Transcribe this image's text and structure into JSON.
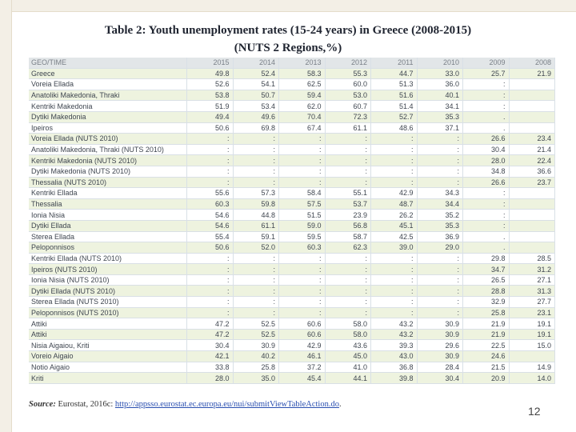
{
  "title_line1": "Table 2: Youth unemployment rates (15-24 years) in Greece (2008-2015)",
  "title_line2": "(NUTS 2 Regions,%)",
  "header": [
    "GEO/TIME",
    "2015",
    "2014",
    "2013",
    "2012",
    "2011",
    "2010",
    "2009",
    "2008"
  ],
  "rows": [
    [
      "Greece",
      "49.8",
      "52.4",
      "58.3",
      "55.3",
      "44.7",
      "33.0",
      "25.7",
      "21.9"
    ],
    [
      "Voreia Ellada",
      "52.6",
      "54.1",
      "62.5",
      "60.0",
      "51.3",
      "36.0",
      ":",
      ""
    ],
    [
      "Anatoliki Makedonia, Thraki",
      "53.8",
      "50.7",
      "59.4",
      "53.0",
      "51.6",
      "40.1",
      ":",
      ""
    ],
    [
      "Kentriki Makedonia",
      "51.9",
      "53.4",
      "62.0",
      "60.7",
      "51.4",
      "34.1",
      ":",
      ""
    ],
    [
      "Dytiki Makedonia",
      "49.4",
      "49.6",
      "70.4",
      "72.3",
      "52.7",
      "35.3",
      ".",
      ""
    ],
    [
      "Ipeiros",
      "50.6",
      "69.8",
      "67.4",
      "61.1",
      "48.6",
      "37.1",
      ".",
      ""
    ],
    [
      "Voreia Ellada (NUTS 2010)",
      ":",
      ":",
      ":",
      ":",
      ":",
      ":",
      "26.6",
      "23.4"
    ],
    [
      "Anatoliki Makedonia, Thraki (NUTS 2010)",
      ":",
      ":",
      ":",
      ":",
      ":",
      ":",
      "30.4",
      "21.4"
    ],
    [
      "Kentriki Makedonia (NUTS 2010)",
      ":",
      ":",
      ":",
      ":",
      ":",
      ":",
      "28.0",
      "22.4"
    ],
    [
      "Dytiki Makedonia (NUTS 2010)",
      ":",
      ":",
      ":",
      ":",
      ":",
      ":",
      "34.8",
      "36.6"
    ],
    [
      "Thessalia (NUTS 2010)",
      ":",
      ":",
      ":",
      ":",
      ":",
      ":",
      "26.6",
      "23.7"
    ],
    [
      "Kentriki Ellada",
      "55.6",
      "57.3",
      "58.4",
      "55.1",
      "42.9",
      "34.3",
      ":",
      ""
    ],
    [
      "Thessalia",
      "60.3",
      "59.8",
      "57.5",
      "53.7",
      "48.7",
      "34.4",
      ":",
      ""
    ],
    [
      "Ionia Nisia",
      "54.6",
      "44.8",
      "51.5",
      "23.9",
      "26.2",
      "35.2",
      ":",
      ""
    ],
    [
      "Dytiki Ellada",
      "54.6",
      "61.1",
      "59.0",
      "56.8",
      "45.1",
      "35.3",
      ":",
      ""
    ],
    [
      "Sterea Ellada",
      "55.4",
      "59.1",
      "59.5",
      "58.7",
      "42.5",
      "36.9",
      ".",
      ""
    ],
    [
      "Peloponnisos",
      "50.6",
      "52.0",
      "60.3",
      "62.3",
      "39.0",
      "29.0",
      ".",
      ""
    ],
    [
      "Kentriki Ellada (NUTS 2010)",
      ":",
      ":",
      ":",
      ":",
      ":",
      ":",
      "29.8",
      "28.5"
    ],
    [
      "Ipeiros (NUTS 2010)",
      ":",
      ":",
      ":",
      ":",
      ":",
      ":",
      "34.7",
      "31.2"
    ],
    [
      "Ionia Nisia (NUTS 2010)",
      ":",
      ":",
      ":",
      ":",
      ":",
      ":",
      "26.5",
      "27.1"
    ],
    [
      "Dytiki Ellada (NUTS 2010)",
      ":",
      ":",
      ":",
      ":",
      ":",
      ":",
      "28.8",
      "31.3"
    ],
    [
      "Sterea Ellada (NUTS 2010)",
      ":",
      ":",
      ":",
      ":",
      ":",
      ":",
      "32.9",
      "27.7"
    ],
    [
      "Peloponnisos (NUTS 2010)",
      ":",
      ":",
      ":",
      ":",
      ":",
      ":",
      "25.8",
      "23.1"
    ],
    [
      "Attiki",
      "47.2",
      "52.5",
      "60.6",
      "58.0",
      "43.2",
      "30.9",
      "21.9",
      "19.1"
    ],
    [
      "Attiki",
      "47.2",
      "52.5",
      "60.6",
      "58.0",
      "43.2",
      "30.9",
      "21.9",
      "19.1"
    ],
    [
      "Nisia Aigaiou, Kriti",
      "30.4",
      "30.9",
      "42.9",
      "43.6",
      "39.3",
      "29.6",
      "22.5",
      "15.0"
    ],
    [
      "Voreio Aigaio",
      "42.1",
      "40.2",
      "46.1",
      "45.0",
      "43.0",
      "30.9",
      "24.6",
      ""
    ],
    [
      "Notio Aigaio",
      "33.8",
      "25.8",
      "37.2",
      "41.0",
      "36.8",
      "28.4",
      "21.5",
      "14.9"
    ],
    [
      "Kriti",
      "28.0",
      "35.0",
      "45.4",
      "44.1",
      "39.8",
      "30.4",
      "20.9",
      "14.0"
    ]
  ],
  "source_label": "Source:",
  "source_text": "Eurostat, 2016c:",
  "source_link": "http://appsso.eurostat.ec.europa.eu/nui/submitViewTableAction.do",
  "source_end": ".",
  "page_number": "12"
}
